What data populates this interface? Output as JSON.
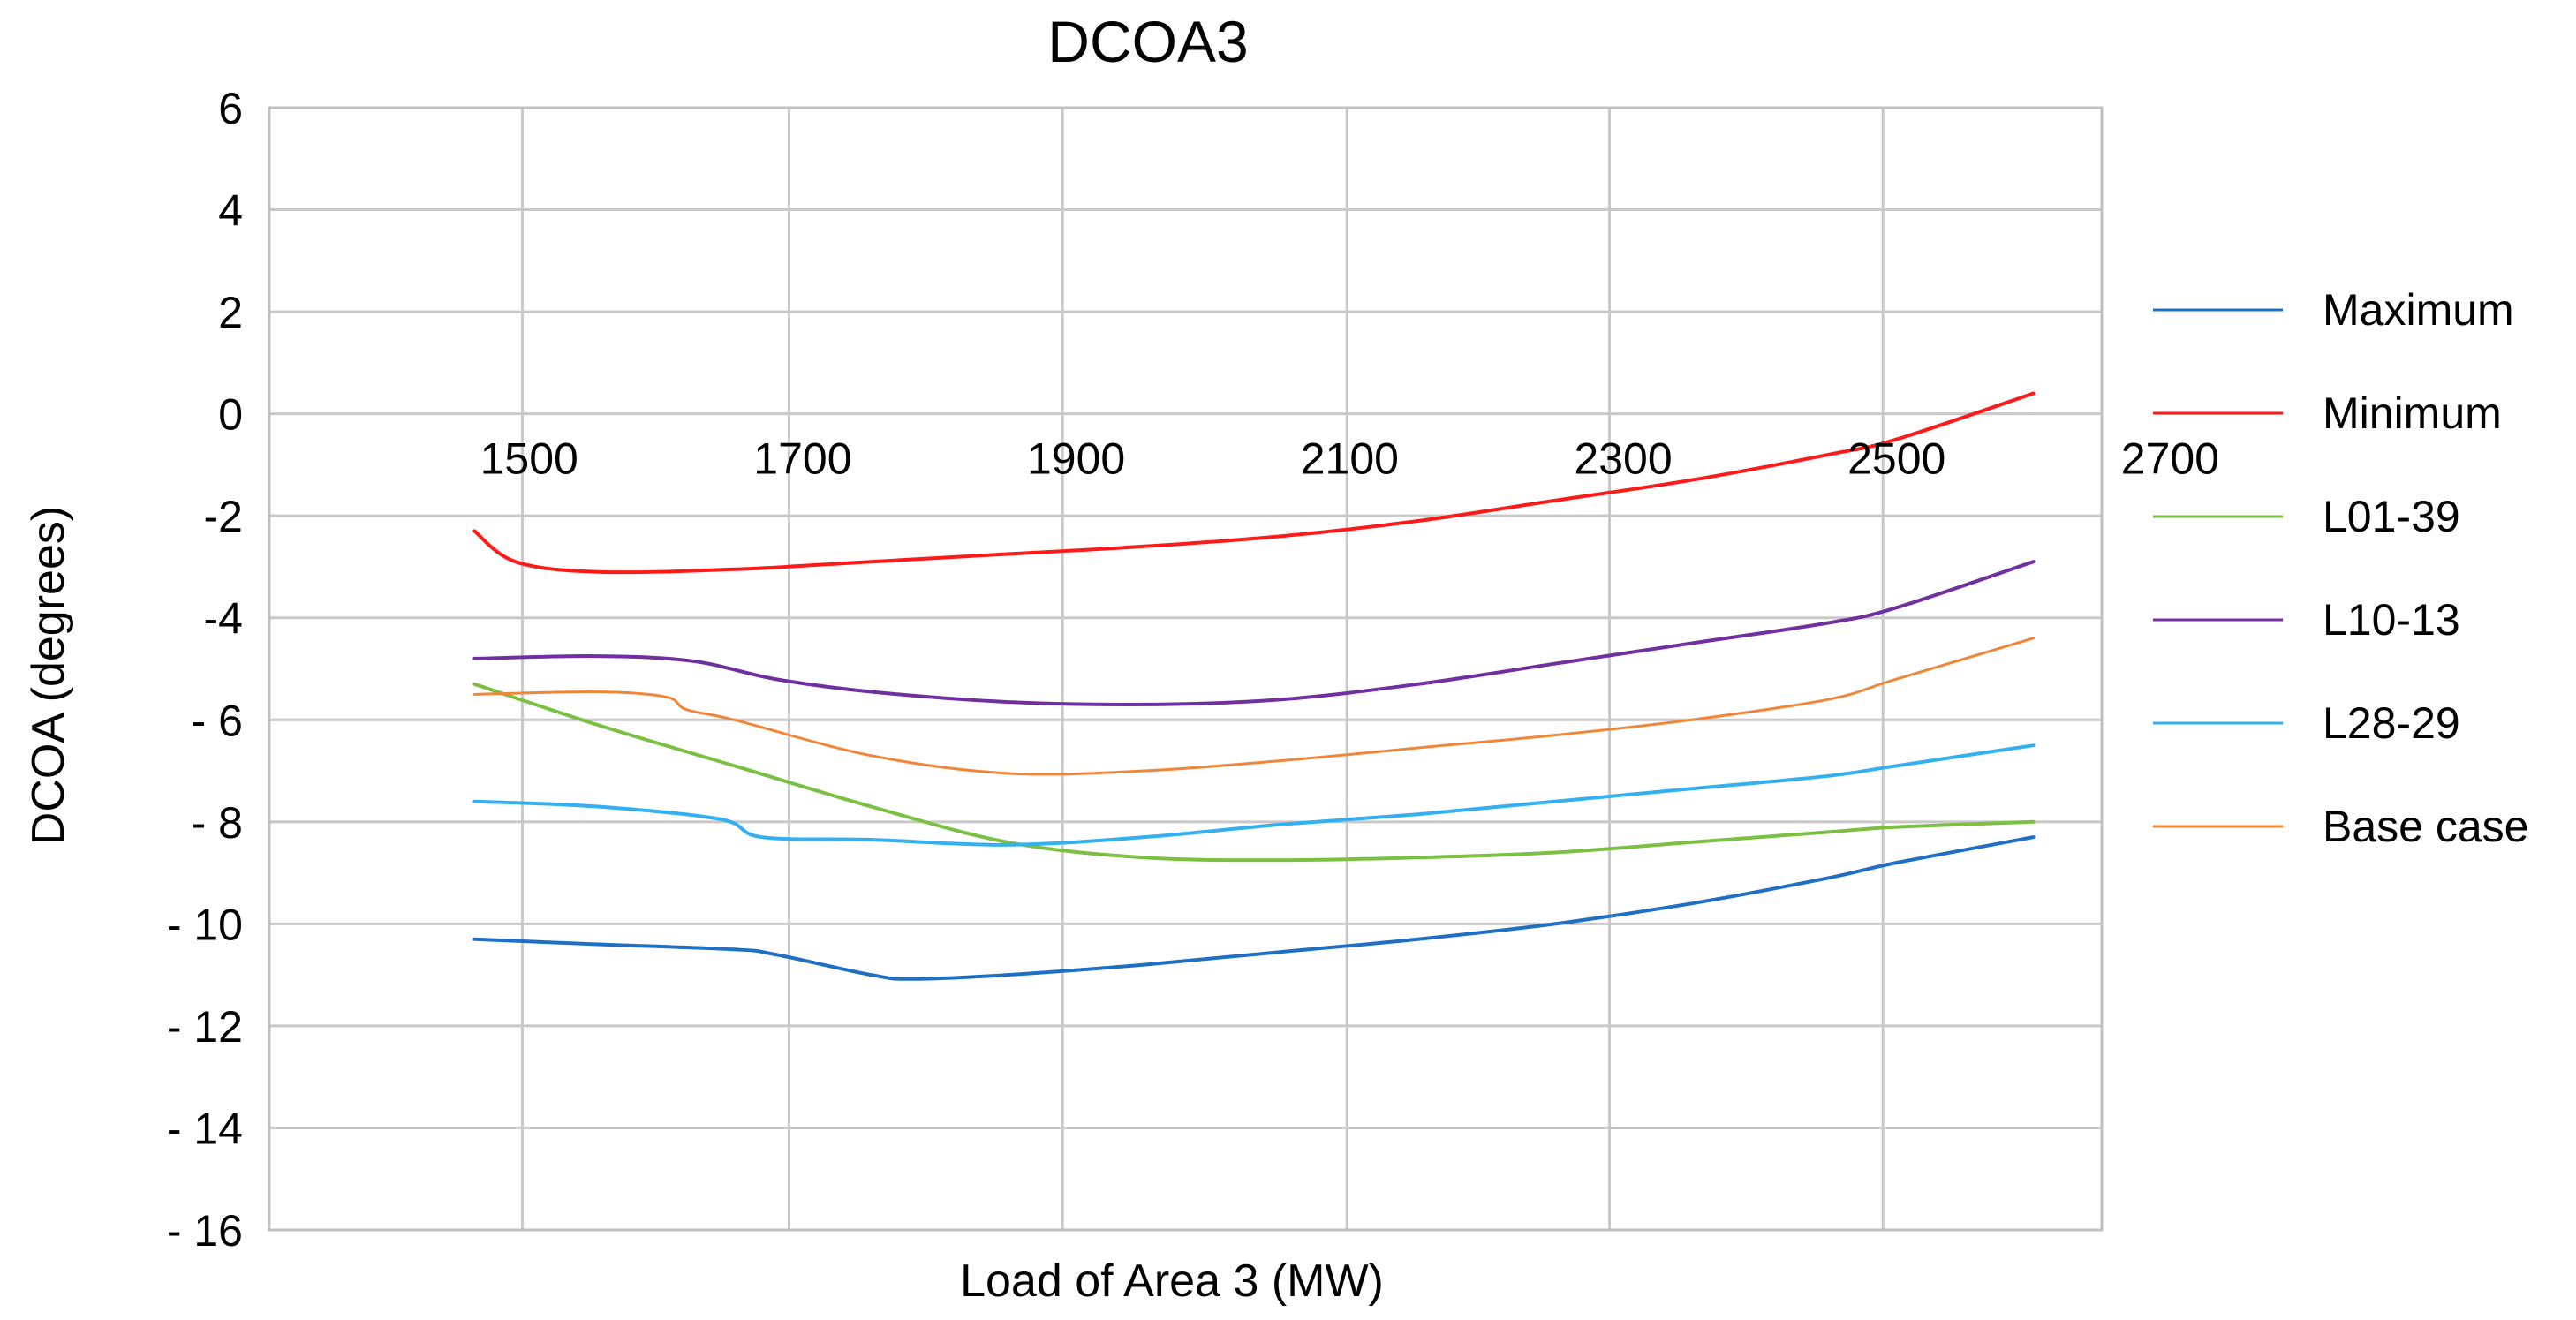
{
  "chart_data": {
    "type": "line",
    "title": "DCOA3",
    "xlabel": "Load of Area 3 (MW)",
    "ylabel": "DCOA (degrees)",
    "xlim": [
      1310,
      2650
    ],
    "ylim": [
      -16,
      6
    ],
    "x_ticks": [
      1500,
      1700,
      1900,
      2100,
      2300,
      2500,
      2700
    ],
    "x_tick_labels": [
      "1500",
      "1700",
      "1900",
      "2100",
      "2300",
      "2500",
      "2700"
    ],
    "y_ticks": [
      6,
      4,
      2,
      0,
      -2,
      -4,
      -6,
      -8,
      -10,
      -12,
      -14,
      -16
    ],
    "y_tick_labels": [
      "6",
      "4",
      "2",
      "0",
      "-2",
      "-4",
      "- 6",
      "- 8",
      "- 10",
      "- 12",
      "- 14",
      "- 16"
    ],
    "vertical_gridlines_x": [
      1310,
      1495,
      1690,
      1890,
      2098,
      2290,
      2490,
      2650
    ],
    "grid": true,
    "legend_position": "right",
    "series": [
      {
        "name": "Maximum",
        "color": "#1f6fc4",
        "x": [
          1460,
          1550,
          1650,
          1680,
          1750,
          1780,
          1850,
          1950,
          2050,
          2150,
          2250,
          2350,
          2450,
          2500,
          2600
        ],
        "y": [
          -10.3,
          -10.4,
          -10.5,
          -10.6,
          -11.0,
          -11.08,
          -11.0,
          -10.8,
          -10.55,
          -10.3,
          -10.0,
          -9.6,
          -9.1,
          -8.8,
          -8.3
        ]
      },
      {
        "name": "Minimum",
        "color": "#ff1a1a",
        "x": [
          1460,
          1490,
          1550,
          1650,
          1750,
          1850,
          1950,
          2050,
          2150,
          2250,
          2350,
          2450,
          2500,
          2600
        ],
        "y": [
          -2.3,
          -2.9,
          -3.1,
          -3.05,
          -2.9,
          -2.75,
          -2.6,
          -2.4,
          -2.1,
          -1.7,
          -1.3,
          -0.8,
          -0.5,
          0.4
        ]
      },
      {
        "name": "L01-39",
        "color": "#7ac143",
        "x": [
          1460,
          1550,
          1650,
          1750,
          1850,
          1950,
          2050,
          2150,
          2250,
          2350,
          2450,
          2500,
          2600
        ],
        "y": [
          -5.3,
          -6.1,
          -6.9,
          -7.7,
          -8.4,
          -8.7,
          -8.75,
          -8.7,
          -8.6,
          -8.4,
          -8.2,
          -8.1,
          -8.0
        ]
      },
      {
        "name": "L10-13",
        "color": "#7030a0",
        "x": [
          1460,
          1550,
          1620,
          1680,
          1750,
          1850,
          1950,
          2050,
          2150,
          2250,
          2350,
          2450,
          2500,
          2600
        ],
        "y": [
          -4.8,
          -4.75,
          -4.85,
          -5.2,
          -5.45,
          -5.65,
          -5.7,
          -5.6,
          -5.3,
          -4.9,
          -4.5,
          -4.1,
          -3.8,
          -2.9
        ]
      },
      {
        "name": "L28-29",
        "color": "#33b0f0",
        "x": [
          1460,
          1550,
          1640,
          1670,
          1750,
          1850,
          1950,
          2050,
          2150,
          2250,
          2350,
          2450,
          2500,
          2600
        ],
        "y": [
          -7.6,
          -7.7,
          -7.95,
          -8.3,
          -8.35,
          -8.45,
          -8.3,
          -8.05,
          -7.85,
          -7.6,
          -7.35,
          -7.1,
          -6.9,
          -6.5
        ]
      },
      {
        "name": "Base case",
        "color": "#f0863a",
        "x": [
          1460,
          1550,
          1600,
          1615,
          1650,
          1750,
          1850,
          1950,
          2050,
          2150,
          2250,
          2350,
          2450,
          2500,
          2600
        ],
        "y": [
          -5.5,
          -5.45,
          -5.55,
          -5.8,
          -6.0,
          -6.7,
          -7.05,
          -7.0,
          -6.8,
          -6.55,
          -6.3,
          -6.0,
          -5.6,
          -5.2,
          -4.4
        ]
      }
    ]
  }
}
